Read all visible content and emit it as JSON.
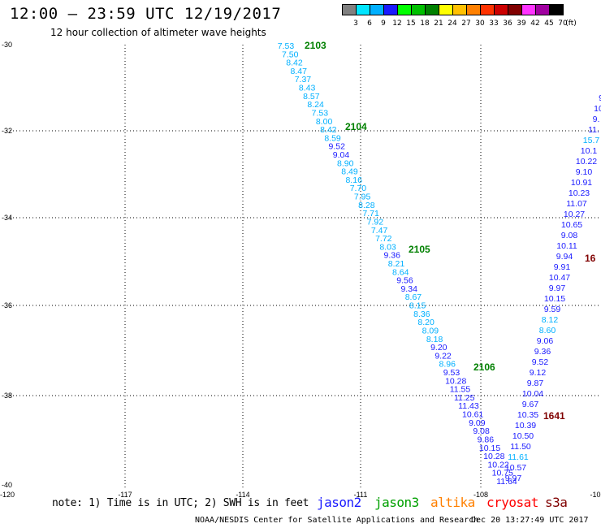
{
  "header": {
    "title": "12:00 — 23:59 UTC 12/19/2017",
    "subtitle": "12 hour collection of altimeter wave heights"
  },
  "colorbar": {
    "colors": [
      "#808080",
      "#00e5ff",
      "#00b0ff",
      "#1a1aff",
      "#00ff00",
      "#00c000",
      "#008000",
      "#ffff00",
      "#ffc000",
      "#ff8000",
      "#ff3300",
      "#cc0000",
      "#800000",
      "#ff33ff",
      "#a000a0",
      "#000000"
    ],
    "labels": [
      "3",
      "6",
      "9",
      "12",
      "15",
      "18",
      "21",
      "24",
      "27",
      "30",
      "33",
      "36",
      "39",
      "42",
      "45",
      "70",
      "(ft)"
    ]
  },
  "axes": {
    "lat_labels": [
      "-30",
      "-32",
      "-34",
      "-36",
      "-38",
      "-40"
    ],
    "lon_labels": [
      "-120",
      "-117",
      "-114",
      "-111",
      "-108",
      "-10"
    ]
  },
  "tracks": [
    {
      "label": "2103",
      "color": "#008000"
    },
    {
      "label": "2104",
      "color": "#008000"
    },
    {
      "label": "2105",
      "color": "#008000"
    },
    {
      "label": "2106",
      "color": "#008000"
    },
    {
      "label": "1641",
      "color": "#800000"
    },
    {
      "label": "16",
      "color": "#800000"
    }
  ],
  "wave_colors": {
    "light": "#00b0ff",
    "dark": "#1a1aff"
  },
  "track_a": {
    "values": [
      "7.53",
      "7.50",
      "8.42",
      "8.47",
      "7.37",
      "8.43",
      "8.57",
      "8.24",
      "7.53",
      "8.00",
      "8.42",
      "8.59",
      "9.52",
      "9.04",
      "8.90",
      "8.49",
      "8.16",
      "7.70",
      "7.95",
      "8.28",
      "7.71",
      "7.92",
      "7.47",
      "7.72",
      "8.03",
      "9.36",
      "8.21",
      "8.64",
      "9.56",
      "9.34",
      "8.67",
      "8.15",
      "8.36",
      "8.20",
      "8.09",
      "8.18",
      "9.20",
      "9.22",
      "8.96",
      "9.53",
      "10.28",
      "11.55",
      "11.25",
      "11.43",
      "10.61",
      "9.09",
      "9.08",
      "9.86",
      "10.15",
      "10.28",
      "10.22",
      "10.75",
      "11.64"
    ],
    "light_flags": [
      1,
      1,
      1,
      1,
      1,
      1,
      1,
      1,
      1,
      1,
      1,
      1,
      0,
      0,
      1,
      1,
      1,
      1,
      1,
      1,
      1,
      1,
      1,
      1,
      1,
      0,
      1,
      1,
      0,
      0,
      1,
      1,
      1,
      1,
      1,
      1,
      0,
      0,
      1,
      0,
      0,
      0,
      0,
      0,
      0,
      0,
      0,
      0,
      0,
      0,
      0,
      0,
      0
    ]
  },
  "track_b": {
    "values": [
      "9.97",
      "10.57",
      "11.61",
      "11.50",
      "10.50",
      "10.39",
      "10.35",
      "9.67",
      "10.04",
      "9.87",
      "9.12",
      "9.52",
      "9.36",
      "9.06",
      "8.60",
      "8.12",
      "9.59",
      "10.15",
      "9.97",
      "10.47",
      "9.91",
      "9.94",
      "10.11",
      "9.08",
      "10.65",
      "10.27",
      "11.07",
      "10.23",
      "10.91",
      "9.10",
      "10.22",
      "10.1",
      "15.7",
      "11.",
      "9.",
      "10",
      "9"
    ],
    "light_flags": [
      0,
      0,
      1,
      0,
      0,
      0,
      0,
      0,
      0,
      0,
      0,
      0,
      0,
      0,
      1,
      1,
      0,
      0,
      0,
      0,
      0,
      0,
      0,
      0,
      0,
      0,
      0,
      0,
      0,
      0,
      0,
      0,
      1,
      0,
      0,
      0,
      0
    ]
  },
  "note": "note: 1) Time is in UTC; 2) SWH is in feet",
  "legend": [
    {
      "label": "jason2",
      "color": "#1a1aff"
    },
    {
      "label": "jason3",
      "color": "#00a000"
    },
    {
      "label": "altika",
      "color": "#ff8000"
    },
    {
      "label": "cryosat",
      "color": "#ff0000"
    },
    {
      "label": "s3a",
      "color": "#800000"
    }
  ],
  "footer": {
    "credit": "NOAA/NESDIS Center for Satellite Applications and Research",
    "timestamp": "Dec 20 13:27:49 UTC 2017"
  }
}
